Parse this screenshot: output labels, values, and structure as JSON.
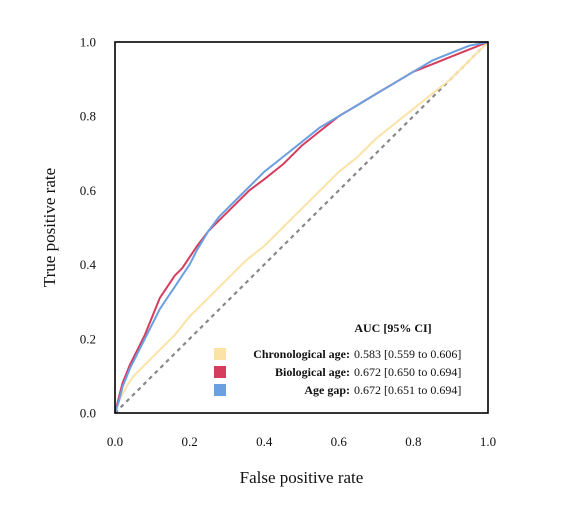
{
  "chart_data": {
    "type": "line",
    "xlabel": "False positive rate",
    "ylabel": "True positive rate",
    "xlim": [
      0.0,
      1.0
    ],
    "ylim": [
      0.0,
      1.0
    ],
    "x_ticks": [
      "0.0",
      "0.2",
      "0.4",
      "0.6",
      "0.8",
      "1.0"
    ],
    "y_ticks": [
      "0.0",
      "0.2",
      "0.4",
      "0.6",
      "0.8",
      "1.0"
    ],
    "grid": false,
    "legend_position": "bottom-right",
    "legend_title": "AUC [95% CI]",
    "reference_line": {
      "style": "dashed",
      "color": "#888888",
      "from": [
        0,
        0
      ],
      "to": [
        1,
        1
      ]
    },
    "series": [
      {
        "name": "Chronological age:",
        "auc_label": "0.583 [0.559 to 0.606]",
        "color": "#FBE3A6",
        "x": [
          0,
          0.01,
          0.03,
          0.05,
          0.08,
          0.12,
          0.16,
          0.2,
          0.25,
          0.3,
          0.35,
          0.4,
          0.45,
          0.5,
          0.55,
          0.6,
          0.65,
          0.7,
          0.75,
          0.8,
          0.85,
          0.9,
          0.95,
          1.0
        ],
        "y": [
          0,
          0.03,
          0.07,
          0.1,
          0.13,
          0.17,
          0.21,
          0.26,
          0.31,
          0.36,
          0.41,
          0.45,
          0.5,
          0.55,
          0.6,
          0.65,
          0.69,
          0.74,
          0.78,
          0.82,
          0.86,
          0.9,
          0.95,
          1.0
        ]
      },
      {
        "name": "Biological age:",
        "auc_label": "0.672 [0.650 to 0.694]",
        "color": "#D63C5E",
        "x": [
          0,
          0.01,
          0.02,
          0.04,
          0.06,
          0.08,
          0.1,
          0.12,
          0.14,
          0.16,
          0.18,
          0.2,
          0.22,
          0.25,
          0.28,
          0.32,
          0.36,
          0.4,
          0.45,
          0.5,
          0.55,
          0.6,
          0.65,
          0.7,
          0.75,
          0.8,
          0.85,
          0.9,
          0.95,
          1.0
        ],
        "y": [
          0,
          0.04,
          0.08,
          0.13,
          0.17,
          0.21,
          0.26,
          0.31,
          0.34,
          0.37,
          0.39,
          0.42,
          0.45,
          0.49,
          0.52,
          0.56,
          0.6,
          0.63,
          0.67,
          0.72,
          0.76,
          0.8,
          0.83,
          0.86,
          0.89,
          0.92,
          0.94,
          0.96,
          0.98,
          1.0
        ]
      },
      {
        "name": "Age gap:",
        "auc_label": "0.672 [0.651 to 0.694]",
        "color": "#6A9FE0",
        "x": [
          0,
          0.01,
          0.02,
          0.04,
          0.06,
          0.08,
          0.1,
          0.12,
          0.14,
          0.16,
          0.18,
          0.2,
          0.22,
          0.25,
          0.28,
          0.32,
          0.36,
          0.4,
          0.45,
          0.5,
          0.55,
          0.6,
          0.65,
          0.7,
          0.75,
          0.8,
          0.85,
          0.9,
          0.95,
          1.0
        ],
        "y": [
          0,
          0.03,
          0.07,
          0.12,
          0.16,
          0.2,
          0.24,
          0.28,
          0.31,
          0.34,
          0.37,
          0.4,
          0.44,
          0.49,
          0.53,
          0.57,
          0.61,
          0.65,
          0.69,
          0.73,
          0.77,
          0.8,
          0.83,
          0.86,
          0.89,
          0.92,
          0.95,
          0.97,
          0.99,
          1.0
        ]
      }
    ]
  }
}
